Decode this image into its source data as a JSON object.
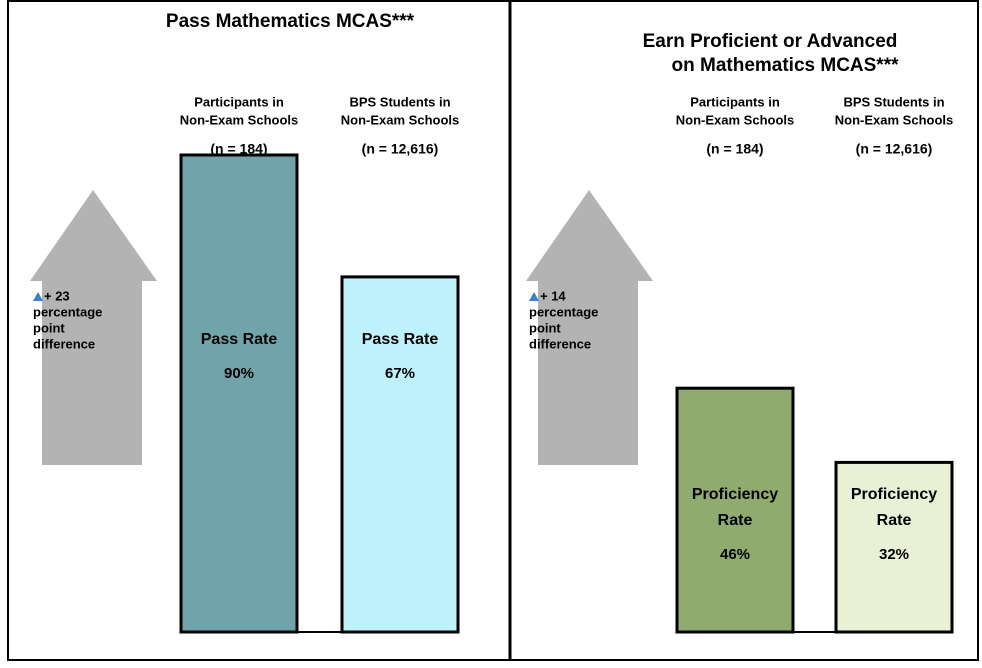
{
  "chart_data": [
    {
      "type": "bar",
      "title": [
        "Pass Mathematics MCAS***"
      ],
      "categories": [
        [
          "Participants in",
          "Non-Exam Schools"
        ],
        [
          "BPS Students in",
          "Non-Exam Schools"
        ]
      ],
      "n_labels": [
        "(n = 184)",
        "(n = 12,616)"
      ],
      "bar_label": [
        "Pass Rate"
      ],
      "values": [
        90,
        67
      ],
      "value_labels": [
        "90%",
        "67%"
      ],
      "colors": [
        "#6fa5aa",
        "#bdf1fb"
      ],
      "ylim": [
        0,
        100
      ],
      "annotation": [
        "+ 23",
        "percentage",
        "point",
        "difference"
      ]
    },
    {
      "type": "bar",
      "title": [
        "Earn Proficient or Advanced",
        "on Mathematics MCAS***"
      ],
      "categories": [
        [
          "Participants in",
          "Non-Exam Schools"
        ],
        [
          "BPS Students in",
          "Non-Exam Schools"
        ]
      ],
      "n_labels": [
        "(n = 184)",
        "(n = 12,616)"
      ],
      "bar_label": [
        "Proficiency",
        "Rate"
      ],
      "values": [
        46,
        32
      ],
      "value_labels": [
        "46%",
        "32%"
      ],
      "colors": [
        "#8fab6e",
        "#e8f1d6"
      ],
      "ylim": [
        0,
        100
      ],
      "annotation": [
        "+ 14",
        "percentage",
        "point",
        "difference"
      ]
    }
  ]
}
